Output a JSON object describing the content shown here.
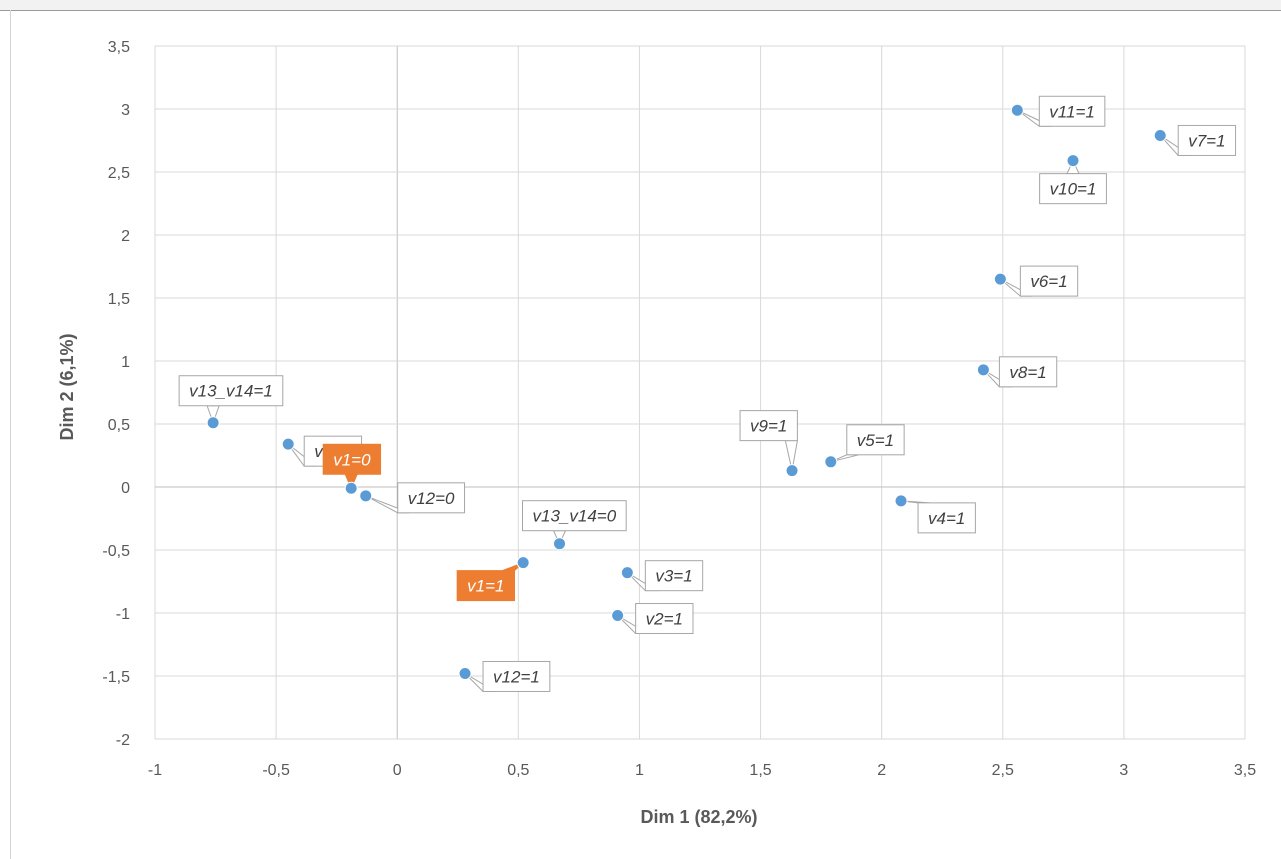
{
  "chart_data": {
    "type": "scatter",
    "xlabel": "Dim 1 (82,2%)",
    "ylabel": "Dim 2 (6,1%)",
    "xlim": [
      -1,
      3.5
    ],
    "ylim": [
      -2,
      3.5
    ],
    "xticks": [
      "-1",
      "-0,5",
      "0",
      "0,5",
      "1",
      "1,5",
      "2",
      "2,5",
      "3",
      "3,5"
    ],
    "yticks": [
      "-2",
      "-1,5",
      "-1",
      "-0,5",
      "0",
      "0,5",
      "1",
      "1,5",
      "2",
      "2,5",
      "3",
      "3,5"
    ],
    "grid": true,
    "point_color": "#5b9bd5",
    "highlight_color": "#ed7d31",
    "points": [
      {
        "label": "v11=1",
        "x": 2.56,
        "y": 2.99
      },
      {
        "label": "v7=1",
        "x": 3.15,
        "y": 2.79
      },
      {
        "label": "v10=1",
        "x": 2.79,
        "y": 2.59
      },
      {
        "label": "v6=1",
        "x": 2.49,
        "y": 1.65
      },
      {
        "label": "v8=1",
        "x": 2.42,
        "y": 0.93
      },
      {
        "label": "v13_v14=1",
        "x": -0.76,
        "y": 0.51
      },
      {
        "label": "v3=0",
        "x": -0.45,
        "y": 0.34
      },
      {
        "label": "v1=0",
        "x": -0.19,
        "y": -0.01,
        "highlight": true
      },
      {
        "label": "v12=0",
        "x": -0.13,
        "y": -0.07
      },
      {
        "label": "v9=1",
        "x": 1.63,
        "y": 0.13
      },
      {
        "label": "v5=1",
        "x": 1.79,
        "y": 0.2
      },
      {
        "label": "v4=1",
        "x": 2.08,
        "y": -0.11
      },
      {
        "label": "v13_v14=0",
        "x": 0.67,
        "y": -0.45
      },
      {
        "label": "v1=1",
        "x": 0.52,
        "y": -0.6,
        "highlight": true
      },
      {
        "label": "v3=1",
        "x": 0.95,
        "y": -0.68
      },
      {
        "label": "v2=1",
        "x": 0.91,
        "y": -1.02
      },
      {
        "label": "v12=1",
        "x": 0.28,
        "y": -1.48
      }
    ]
  }
}
